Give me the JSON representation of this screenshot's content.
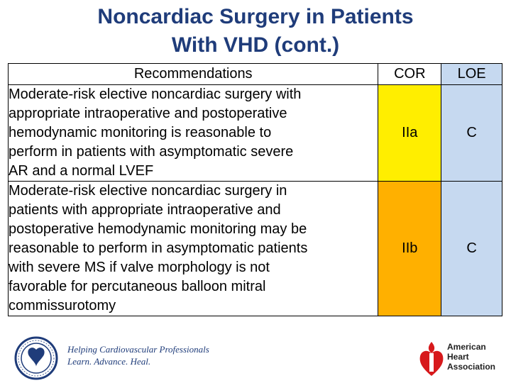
{
  "title": {
    "line1": "Noncardiac Surgery in Patients",
    "line2": "With VHD (cont.)"
  },
  "table": {
    "headers": {
      "recommendations": "Recommendations",
      "cor": "COR",
      "loe": "LOE"
    },
    "rows": [
      {
        "text_lines": [
          "Moderate-risk elective noncardiac surgery with",
          "appropriate intraoperative and postoperative",
          "hemodynamic monitoring is reasonable to",
          "perform in patients with asymptomatic severe",
          "AR and a normal LVEF"
        ],
        "cor": "IIa",
        "loe": "C",
        "cor_color": "#ffee00"
      },
      {
        "text_lines": [
          "Moderate-risk elective noncardiac surgery in",
          "patients with appropriate intraoperative and",
          "postoperative hemodynamic monitoring may be",
          "reasonable to perform in asymptomatic patients",
          "with severe MS if valve morphology is not",
          "favorable for percutaneous balloon mitral",
          "commissurotomy"
        ],
        "cor": "IIb",
        "loe": "C",
        "cor_color": "#ffb000"
      }
    ],
    "loe_color": "#c6d9f0"
  },
  "footer": {
    "acc_tagline_line1": "Helping Cardiovascular Professionals",
    "acc_tagline_line2": "Learn. Advance. Heal.",
    "aha_line1": "American",
    "aha_line2": "Heart",
    "aha_line3": "Association",
    "acc_seal_icon": "acc-seal-icon",
    "aha_torch_icon": "heart-torch-icon"
  },
  "colors": {
    "title": "#1f3c7a",
    "cor_iia": "#ffee00",
    "cor_iib": "#ffb000",
    "loe": "#c6d9f0"
  }
}
